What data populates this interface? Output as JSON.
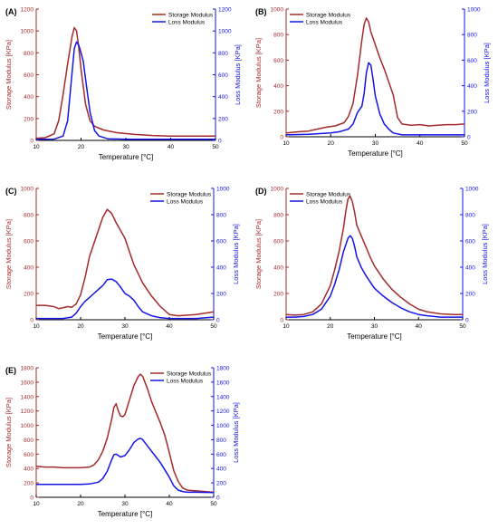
{
  "colors": {
    "storage": "#a52a2a",
    "loss": "#1414e6",
    "axis": "#000000"
  },
  "chart_data": [
    {
      "type": "line",
      "panel_label": "(A)",
      "xlabel": "Temperature [°C]",
      "ylabel_left": "Storage Modulus [KPa]",
      "ylabel_right": "Loss Modulus [KPa]",
      "xlim": [
        10,
        50
      ],
      "ylim_left": [
        0,
        1200
      ],
      "ylim_right": [
        0,
        1200
      ],
      "xticks": [
        10,
        20,
        30,
        40,
        50
      ],
      "yticks_left": [
        0,
        200,
        400,
        600,
        800,
        1000,
        1200
      ],
      "yticks_right": [
        0,
        200,
        400,
        600,
        800,
        1000,
        1200
      ],
      "legend_position": "top-right",
      "series": [
        {
          "name": "Storage Modulus",
          "axis": "left",
          "x": [
            10,
            12,
            14,
            15,
            16,
            17,
            18,
            18.5,
            19,
            19.5,
            20,
            21,
            22,
            23,
            25,
            28,
            32,
            36,
            40,
            45,
            50
          ],
          "y": [
            20,
            25,
            60,
            180,
            420,
            700,
            950,
            1030,
            1000,
            850,
            650,
            330,
            180,
            130,
            95,
            70,
            55,
            45,
            40,
            40,
            40
          ]
        },
        {
          "name": "Loss Modulus",
          "axis": "right",
          "x": [
            10,
            14,
            16,
            17,
            18,
            18.5,
            19,
            19.5,
            20,
            20.5,
            21,
            22,
            23,
            24,
            26,
            30,
            40,
            50
          ],
          "y": [
            10,
            12,
            40,
            180,
            620,
            840,
            900,
            870,
            800,
            720,
            560,
            260,
            90,
            40,
            15,
            10,
            10,
            10
          ]
        }
      ]
    },
    {
      "type": "line",
      "panel_label": "(B)",
      "xlabel": "Temperature [°C]",
      "ylabel_left": "Storage Modulus [KPa]",
      "ylabel_right": "Loss Modulus [KPa]",
      "xlim": [
        10,
        50
      ],
      "ylim_left": [
        0,
        1000
      ],
      "ylim_right": [
        0,
        1000
      ],
      "xticks": [
        10,
        20,
        30,
        40,
        50
      ],
      "yticks_left": [
        0,
        200,
        400,
        600,
        800,
        1000
      ],
      "yticks_right": [
        0,
        200,
        400,
        600,
        800,
        1000
      ],
      "legend_position": "top-left",
      "series": [
        {
          "name": "Storage Modulus",
          "axis": "left",
          "x": [
            10,
            13,
            15,
            17,
            19,
            21,
            23,
            24,
            25,
            26,
            27,
            27.5,
            28,
            28.5,
            29,
            30,
            31,
            32,
            33,
            34,
            35,
            36,
            38,
            40,
            42,
            44,
            46,
            48,
            50
          ],
          "y": [
            30,
            40,
            45,
            60,
            75,
            85,
            110,
            160,
            260,
            480,
            760,
            880,
            930,
            900,
            820,
            720,
            620,
            530,
            430,
            330,
            150,
            100,
            90,
            95,
            85,
            90,
            95,
            95,
            100
          ]
        },
        {
          "name": "Loss Modulus",
          "axis": "right",
          "x": [
            10,
            15,
            20,
            22,
            24,
            25,
            26,
            27,
            27.5,
            28,
            28.5,
            29,
            29.5,
            30,
            31,
            32,
            33,
            34,
            36,
            40,
            50
          ],
          "y": [
            15,
            20,
            30,
            40,
            60,
            100,
            190,
            240,
            340,
            500,
            580,
            560,
            450,
            320,
            180,
            100,
            60,
            30,
            15,
            15,
            15
          ]
        }
      ]
    },
    {
      "type": "line",
      "panel_label": "(C)",
      "xlabel": "Temperature [°C]",
      "ylabel_left": "Storage Modulus [KPa]",
      "ylabel_right": "Loss Modulus [KPa]",
      "xlim": [
        10,
        50
      ],
      "ylim_left": [
        0,
        1000
      ],
      "ylim_right": [
        0,
        1000
      ],
      "xticks": [
        10,
        20,
        30,
        40,
        50
      ],
      "yticks_left": [
        0,
        200,
        400,
        600,
        800,
        1000
      ],
      "yticks_right": [
        0,
        200,
        400,
        600,
        800,
        1000
      ],
      "legend_position": "top-right",
      "series": [
        {
          "name": "Storage Modulus",
          "axis": "left",
          "x": [
            10,
            12,
            14,
            15,
            16,
            17,
            18,
            19,
            20,
            21,
            22,
            23,
            24,
            25,
            26,
            27,
            28,
            29,
            30,
            31,
            32,
            34,
            36,
            38,
            40,
            42,
            46,
            50
          ],
          "y": [
            110,
            110,
            100,
            85,
            90,
            100,
            95,
            120,
            190,
            320,
            480,
            580,
            680,
            780,
            840,
            810,
            740,
            680,
            620,
            520,
            420,
            280,
            180,
            100,
            40,
            30,
            40,
            60
          ]
        },
        {
          "name": "Loss Modulus",
          "axis": "right",
          "x": [
            10,
            12,
            14,
            16,
            18,
            19,
            20,
            21,
            22,
            23,
            24,
            25,
            26,
            27,
            28,
            29,
            30,
            31,
            32,
            33,
            34,
            36,
            38,
            40,
            42,
            46,
            50
          ],
          "y": [
            10,
            10,
            10,
            10,
            20,
            50,
            100,
            140,
            170,
            200,
            230,
            260,
            305,
            310,
            290,
            250,
            200,
            180,
            150,
            100,
            60,
            30,
            15,
            10,
            10,
            10,
            20
          ]
        }
      ]
    },
    {
      "type": "line",
      "panel_label": "(D)",
      "xlabel": "Temperature [°C]",
      "ylabel_left": "Storage Modulus [KPa]",
      "ylabel_right": "Loss Modulus [KPa]",
      "xlim": [
        10,
        50
      ],
      "ylim_left": [
        0,
        1000
      ],
      "ylim_right": [
        0,
        1000
      ],
      "xticks": [
        10,
        20,
        30,
        40,
        50
      ],
      "yticks_left": [
        0,
        200,
        400,
        600,
        800,
        1000
      ],
      "yticks_right": [
        0,
        200,
        400,
        600,
        800,
        1000
      ],
      "legend_position": "top-left",
      "series": [
        {
          "name": "Storage Modulus",
          "axis": "left",
          "x": [
            10,
            12,
            14,
            16,
            18,
            20,
            21,
            22,
            23,
            23.5,
            24,
            24.5,
            25,
            25.5,
            26,
            27,
            28,
            29,
            30,
            32,
            34,
            36,
            38,
            40,
            42,
            45,
            48,
            50
          ],
          "y": [
            40,
            35,
            40,
            60,
            120,
            260,
            380,
            520,
            700,
            820,
            920,
            940,
            900,
            820,
            720,
            640,
            560,
            480,
            410,
            310,
            230,
            170,
            120,
            80,
            60,
            45,
            40,
            40
          ]
        },
        {
          "name": "Loss Modulus",
          "axis": "right",
          "x": [
            10,
            12,
            14,
            16,
            18,
            20,
            21,
            22,
            23,
            24,
            24.5,
            25,
            25.5,
            26,
            27,
            28,
            29,
            30,
            32,
            34,
            36,
            38,
            40,
            42,
            45,
            50
          ],
          "y": [
            20,
            20,
            25,
            40,
            80,
            180,
            270,
            380,
            520,
            620,
            640,
            620,
            560,
            480,
            400,
            340,
            290,
            240,
            180,
            130,
            90,
            60,
            40,
            30,
            20,
            20
          ]
        }
      ]
    },
    {
      "type": "line",
      "panel_label": "(E)",
      "xlabel": "Temperature [°C]",
      "ylabel_left": "Storage Modulus [KPa]",
      "ylabel_right": "Loss Modulus [KPa]",
      "xlim": [
        10,
        50
      ],
      "ylim_left": [
        0,
        1800
      ],
      "ylim_right": [
        0,
        1800
      ],
      "xticks": [
        10,
        20,
        30,
        40,
        50
      ],
      "yticks_left": [
        0,
        200,
        400,
        600,
        800,
        1000,
        1200,
        1400,
        1600,
        1800
      ],
      "yticks_right": [
        0,
        200,
        400,
        600,
        800,
        1000,
        1200,
        1400,
        1600,
        1800
      ],
      "legend_position": "top-right",
      "series": [
        {
          "name": "Storage Modulus",
          "axis": "left",
          "x": [
            10,
            12,
            14,
            16,
            18,
            20,
            22,
            23,
            24,
            25,
            26,
            27,
            27.5,
            28,
            28.5,
            29,
            29.5,
            30,
            31,
            32,
            33,
            33.5,
            34,
            35,
            36,
            37,
            38,
            39,
            40,
            41,
            42,
            43,
            44,
            46,
            48,
            50
          ],
          "y": [
            430,
            420,
            420,
            410,
            410,
            410,
            420,
            450,
            520,
            640,
            820,
            1080,
            1250,
            1300,
            1200,
            1130,
            1120,
            1150,
            1350,
            1550,
            1680,
            1710,
            1680,
            1520,
            1330,
            1180,
            1030,
            860,
            620,
            370,
            220,
            130,
            100,
            90,
            80,
            70
          ]
        },
        {
          "name": "Loss Modulus",
          "axis": "right",
          "x": [
            10,
            14,
            18,
            20,
            22,
            24,
            25,
            26,
            27,
            27.5,
            28,
            28.5,
            29,
            30,
            31,
            32,
            33,
            33.5,
            34,
            35,
            36,
            37,
            38,
            39,
            40,
            41,
            42,
            43,
            44,
            46,
            50
          ],
          "y": [
            180,
            180,
            180,
            180,
            185,
            210,
            260,
            360,
            520,
            590,
            600,
            580,
            560,
            580,
            660,
            760,
            810,
            820,
            800,
            720,
            640,
            560,
            480,
            380,
            280,
            160,
            100,
            80,
            70,
            70,
            65
          ]
        }
      ]
    }
  ]
}
